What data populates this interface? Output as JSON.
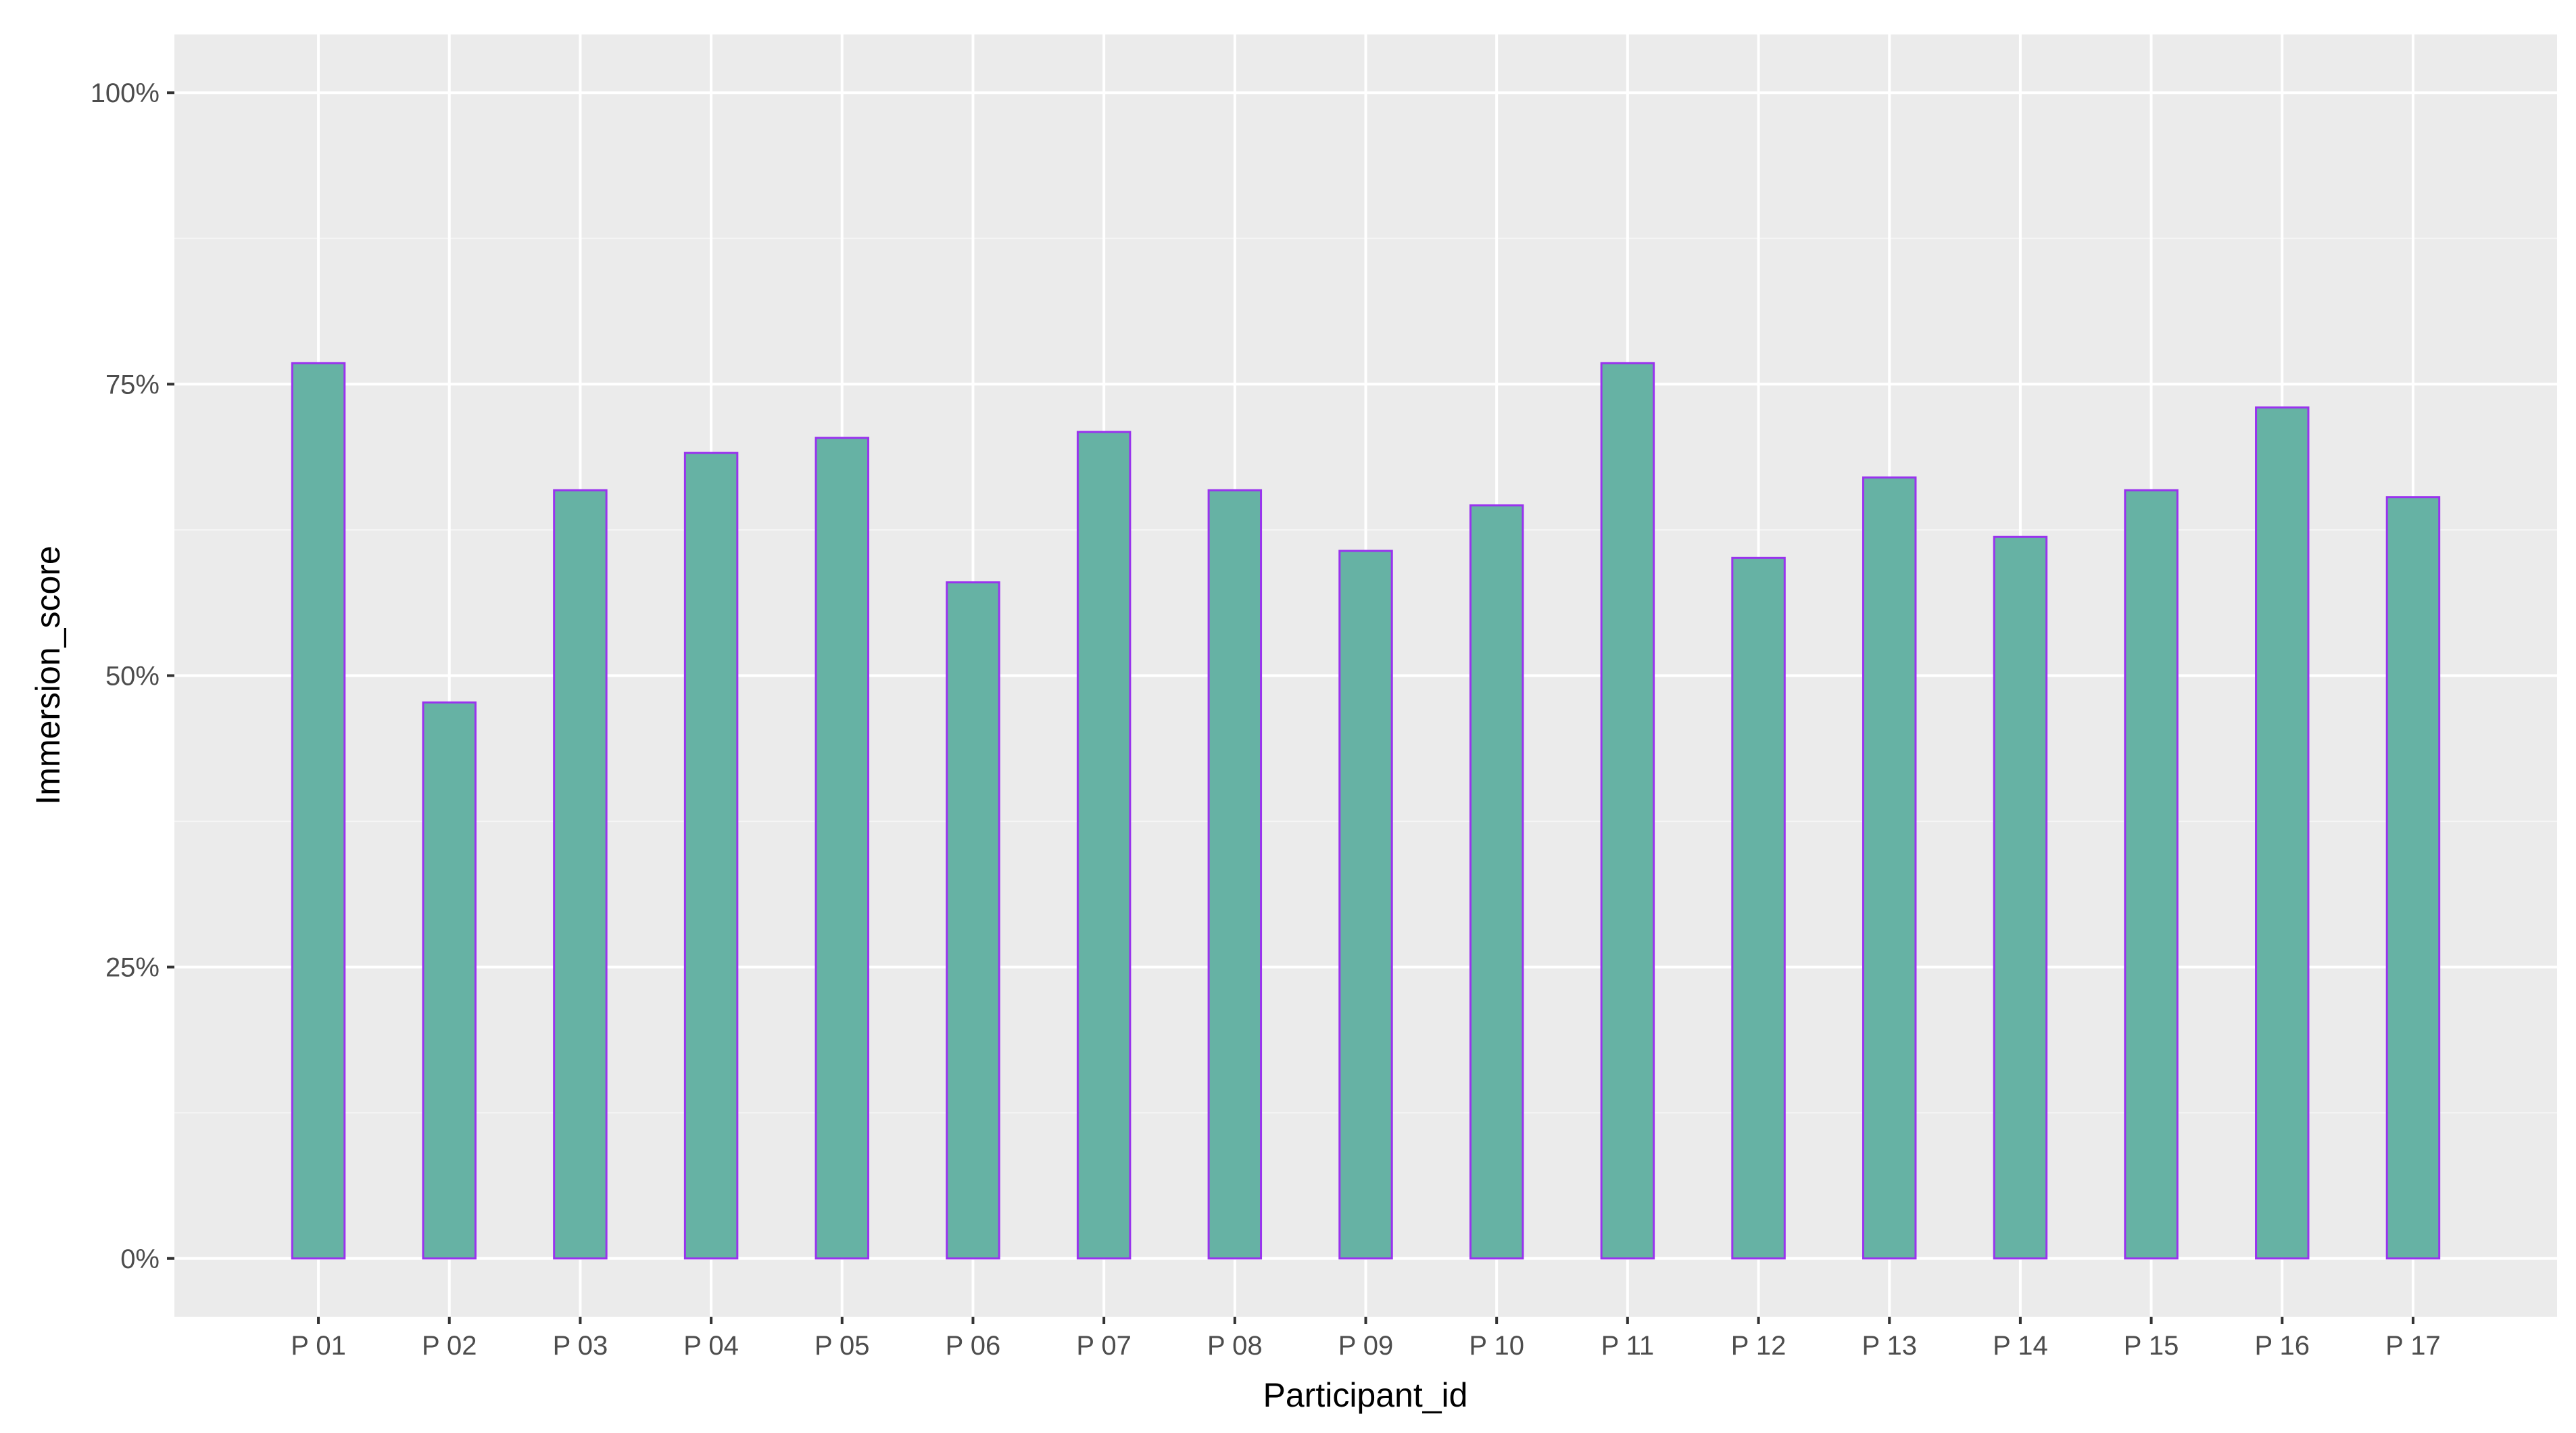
{
  "chart_data": {
    "type": "bar",
    "title": "",
    "xlabel": "Participant_id",
    "ylabel": "Immersion_score",
    "categories": [
      "P 01",
      "P 02",
      "P 03",
      "P 04",
      "P 05",
      "P 06",
      "P 07",
      "P 08",
      "P 09",
      "P 10",
      "P 11",
      "P 12",
      "P 13",
      "P 14",
      "P 15",
      "P 16",
      "P 17"
    ],
    "values": [
      0.768,
      0.477,
      0.659,
      0.691,
      0.704,
      0.58,
      0.709,
      0.659,
      0.607,
      0.646,
      0.768,
      0.601,
      0.67,
      0.619,
      0.659,
      0.73,
      0.653
    ],
    "ylim": [
      -0.05,
      1.05
    ],
    "y_ticks": [
      0,
      0.25,
      0.5,
      0.75,
      1.0
    ],
    "y_tick_labels": [
      "0%",
      "25%",
      "50%",
      "75%",
      "100%"
    ],
    "grid": true,
    "legend": "none",
    "colors": {
      "bar_fill": "#66b2a4",
      "bar_outline": "#9933ee",
      "panel_background": "#ebebeb",
      "grid_major": "#ffffff",
      "grid_minor": "#f5f5f5",
      "tick_mark": "#333333"
    }
  }
}
